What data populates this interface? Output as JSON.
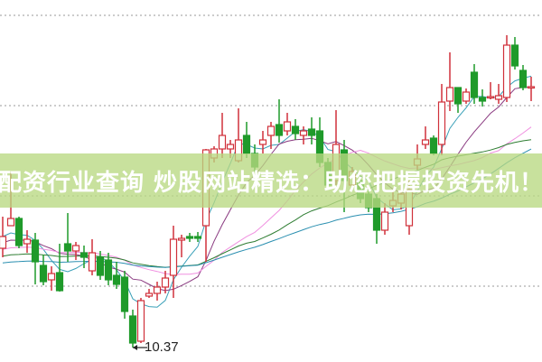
{
  "banner": {
    "text": "配资行业查询 炒股网站精选：助您把握投资先机！"
  },
  "chart_data": {
    "type": "candlestick",
    "grid": "horizontal dotted",
    "colors": {
      "up": "#d0303a",
      "down": "#1f9a2a",
      "ma": [
        "#3aa0b8",
        "#8a3a80",
        "#f090e0",
        "#2e7d32",
        "#2a8fb0"
      ]
    },
    "low_annotation": {
      "label": "10.37",
      "value": 10.37
    },
    "candles": [
      [
        11.47,
        11.6,
        11.82,
        11.37
      ],
      [
        11.72,
        11.8,
        12.32,
        11.72
      ],
      [
        11.8,
        11.5,
        11.82,
        11.47
      ],
      [
        11.52,
        11.57,
        11.67,
        11.42
      ],
      [
        11.56,
        11.32,
        11.64,
        11.07
      ],
      [
        11.28,
        11.1,
        11.4,
        11.06
      ],
      [
        11.12,
        11.19,
        11.27,
        11.0
      ],
      [
        11.2,
        11.0,
        11.52,
        10.99
      ],
      [
        11.52,
        11.44,
        11.86,
        11.32
      ],
      [
        11.44,
        11.5,
        11.54,
        11.34
      ],
      [
        11.42,
        11.37,
        11.5,
        11.25
      ],
      [
        11.22,
        11.42,
        11.57,
        11.17
      ],
      [
        11.37,
        11.17,
        11.44,
        11.12
      ],
      [
        11.34,
        11.12,
        11.42,
        11.06
      ],
      [
        11.17,
        11.07,
        11.32,
        11.02
      ],
      [
        11.15,
        10.77,
        11.22,
        10.69
      ],
      [
        10.72,
        10.42,
        10.79,
        10.37
      ],
      [
        10.44,
        10.89,
        10.92,
        10.42
      ],
      [
        10.94,
        10.97,
        11.02,
        10.92
      ],
      [
        10.97,
        11.04,
        11.1,
        10.89
      ],
      [
        11.04,
        11.14,
        11.22,
        10.97
      ],
      [
        11.17,
        11.57,
        11.72,
        10.92
      ],
      [
        11.56,
        11.58,
        11.62,
        11.37
      ],
      [
        11.6,
        11.58,
        11.64,
        11.54
      ],
      [
        11.6,
        11.58,
        11.65,
        11.54
      ],
      [
        11.72,
        12.56,
        12.57,
        11.32
      ],
      [
        12.47,
        12.57,
        12.6,
        12.42
      ],
      [
        12.57,
        12.72,
        12.97,
        12.47
      ],
      [
        12.57,
        12.62,
        12.67,
        12.47
      ],
      [
        12.44,
        12.67,
        13.02,
        12.42
      ],
      [
        12.72,
        12.52,
        12.87,
        12.47
      ],
      [
        12.52,
        12.37,
        12.62,
        12.32
      ],
      [
        12.62,
        12.67,
        12.77,
        12.52
      ],
      [
        12.72,
        12.82,
        12.87,
        12.57
      ],
      [
        12.84,
        12.72,
        13.12,
        12.64
      ],
      [
        12.77,
        12.87,
        12.97,
        12.72
      ],
      [
        12.82,
        12.74,
        12.9,
        12.67
      ],
      [
        12.72,
        12.77,
        12.82,
        12.62
      ],
      [
        12.79,
        12.72,
        12.92,
        12.62
      ],
      [
        12.77,
        12.42,
        12.92,
        12.37
      ],
      [
        12.42,
        12.17,
        12.47,
        12.12
      ],
      [
        12.22,
        12.62,
        13.0,
        12.17
      ],
      [
        12.56,
        12.22,
        12.67,
        11.87
      ],
      [
        12.17,
        12.32,
        12.37,
        12.12
      ],
      [
        12.22,
        12.02,
        12.27,
        11.97
      ],
      [
        12.07,
        11.92,
        12.12,
        11.87
      ],
      [
        12.02,
        11.67,
        12.07,
        11.52
      ],
      [
        11.67,
        11.87,
        11.97,
        11.62
      ],
      [
        11.94,
        12.0,
        12.12,
        11.87
      ],
      [
        11.97,
        12.07,
        12.17,
        11.9
      ],
      [
        11.72,
        12.12,
        12.22,
        11.62
      ],
      [
        12.39,
        12.46,
        12.62,
        12.34
      ],
      [
        12.62,
        12.67,
        12.82,
        12.57
      ],
      [
        12.69,
        12.52,
        12.72,
        12.5
      ],
      [
        12.62,
        13.09,
        13.29,
        12.5
      ],
      [
        13.1,
        13.25,
        13.64,
        12.99
      ],
      [
        13.25,
        13.07,
        13.25,
        12.97
      ],
      [
        13.1,
        13.2,
        13.24,
        13.07
      ],
      [
        13.42,
        13.14,
        13.51,
        13.07
      ],
      [
        13.14,
        13.1,
        13.23,
        13.04
      ],
      [
        13.14,
        13.15,
        13.31,
        13.12
      ],
      [
        13.12,
        13.16,
        13.29,
        13.07
      ],
      [
        13.14,
        13.72,
        13.83,
        13.09
      ],
      [
        13.72,
        13.49,
        13.81,
        13.45
      ],
      [
        13.44,
        13.25,
        13.5,
        13.22
      ],
      [
        13.25,
        13.26,
        13.37,
        13.1
      ]
    ],
    "candle_format": [
      "open",
      "close",
      "high",
      "low"
    ]
  }
}
